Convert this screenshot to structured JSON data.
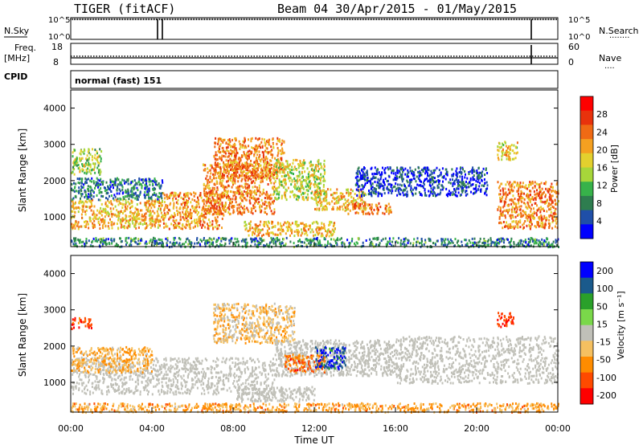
{
  "header": {
    "title": "TIGER (fitACF)",
    "beam_date": "Beam 04  30/Apr/2015 - 01/May/2015"
  },
  "nsky_panel": {
    "left_label": "N.Sky",
    "right_label": "N.Search",
    "left_ticks": [
      "10^5",
      "10^0"
    ],
    "right_ticks": [
      "10^5",
      "10^0"
    ],
    "dotted_legend": "········"
  },
  "freq_panel": {
    "left_label_line1": "Freq.",
    "left_label_line2": "[MHz]",
    "right_label": "Nave",
    "left_ticks": [
      "18",
      "8"
    ],
    "right_ticks": [
      "60",
      "0"
    ],
    "dotted_legend": "····"
  },
  "cpid": {
    "label": "CPID",
    "value": "normal (fast) 151"
  },
  "colors": {
    "frame": "#000000",
    "ground_scatter": "#c0c0b8"
  },
  "chart_data": [
    {
      "type": "heatmap",
      "name": "power",
      "ylabel": "Slant Range [km]",
      "xlabel": "",
      "xlim_hours": [
        0,
        24
      ],
      "ylim_km": [
        180,
        4500
      ],
      "y_ticks": [
        1000,
        2000,
        3000,
        4000
      ],
      "colorbar": {
        "label": "Power [dB]",
        "range": [
          0,
          32
        ],
        "ticks": [
          4,
          8,
          12,
          16,
          20,
          24,
          28
        ],
        "colors": [
          "#0000ff",
          "#1f4fa8",
          "#2e7d4f",
          "#37b24a",
          "#a7d63a",
          "#e3d02e",
          "#f4a020",
          "#f06a14",
          "#e8320c",
          "#ff0000"
        ]
      },
      "regions": [
        {
          "x": [
            0.0,
            4.5
          ],
          "y": [
            700,
            1500
          ],
          "level": 0.62
        },
        {
          "x": [
            0.0,
            4.5
          ],
          "y": [
            1500,
            2100
          ],
          "level": 0.22
        },
        {
          "x": [
            0.0,
            1.5
          ],
          "y": [
            2200,
            2900
          ],
          "level": 0.45
        },
        {
          "x": [
            4.5,
            7.5
          ],
          "y": [
            700,
            1700
          ],
          "level": 0.68
        },
        {
          "x": [
            6.5,
            10.0
          ],
          "y": [
            1100,
            2500
          ],
          "level": 0.7
        },
        {
          "x": [
            7.0,
            10.5
          ],
          "y": [
            2100,
            3200
          ],
          "level": 0.72
        },
        {
          "x": [
            10.0,
            12.5
          ],
          "y": [
            1500,
            2600
          ],
          "level": 0.5
        },
        {
          "x": [
            12.0,
            14.5
          ],
          "y": [
            1200,
            1800
          ],
          "level": 0.6
        },
        {
          "x": [
            13.5,
            15.8
          ],
          "y": [
            1100,
            1400
          ],
          "level": 0.72
        },
        {
          "x": [
            8.5,
            13.0
          ],
          "y": [
            500,
            900
          ],
          "level": 0.6
        },
        {
          "x": [
            14.0,
            20.5
          ],
          "y": [
            1600,
            2400
          ],
          "level": 0.12
        },
        {
          "x": [
            21.0,
            22.0
          ],
          "y": [
            2600,
            3100
          ],
          "level": 0.55
        },
        {
          "x": [
            21.0,
            24.0
          ],
          "y": [
            700,
            2000
          ],
          "level": 0.72
        },
        {
          "x": [
            0.0,
            24.0
          ],
          "y": [
            200,
            450
          ],
          "level": 0.25
        }
      ]
    },
    {
      "type": "heatmap",
      "name": "velocity",
      "ylabel": "Slant Range [km]",
      "xlabel": "Time UT",
      "xlim_hours": [
        0,
        24
      ],
      "ylim_km": [
        180,
        4500
      ],
      "y_ticks": [
        1000,
        2000,
        3000,
        4000
      ],
      "x_ticks": [
        "00:00",
        "04:00",
        "08:00",
        "12:00",
        "16:00",
        "20:00",
        "00:00"
      ],
      "x_tick_hours": [
        0,
        4,
        8,
        12,
        16,
        20,
        24
      ],
      "colorbar": {
        "label": "Velocity [m s⁻¹]",
        "range": [
          -250,
          250
        ],
        "ticks": [
          200,
          100,
          50,
          15,
          -15,
          -50,
          -100,
          -200
        ],
        "colors": [
          "#ff0000",
          "#ff4a00",
          "#ff8c00",
          "#f5c060",
          "#c0c0b8",
          "#7ad84a",
          "#2aa02a",
          "#1a5a8c",
          "#0000ff"
        ]
      },
      "regions": [
        {
          "x": [
            0.0,
            10.0
          ],
          "y": [
            700,
            1700
          ],
          "level": 0.0,
          "gs": true
        },
        {
          "x": [
            10.0,
            16.0
          ],
          "y": [
            1200,
            2200
          ],
          "level": 0.0,
          "gs": true
        },
        {
          "x": [
            16.0,
            24.0
          ],
          "y": [
            1000,
            2300
          ],
          "level": 0.0,
          "gs": true
        },
        {
          "x": [
            8.0,
            12.0
          ],
          "y": [
            500,
            900
          ],
          "level": 0.0,
          "gs": true
        },
        {
          "x": [
            0.0,
            4.0
          ],
          "y": [
            1300,
            2000
          ],
          "level": -0.3
        },
        {
          "x": [
            7.0,
            11.0
          ],
          "y": [
            2100,
            3200
          ],
          "level": -0.2
        },
        {
          "x": [
            10.5,
            12.5
          ],
          "y": [
            1300,
            1800
          ],
          "level": -0.55
        },
        {
          "x": [
            12.0,
            13.5
          ],
          "y": [
            1400,
            2000
          ],
          "level": 0.75
        },
        {
          "x": [
            21.0,
            21.8
          ],
          "y": [
            2550,
            2950
          ],
          "level": -0.8
        },
        {
          "x": [
            0.0,
            1.0
          ],
          "y": [
            2500,
            2800
          ],
          "level": -0.75
        },
        {
          "x": [
            0.0,
            24.0
          ],
          "y": [
            200,
            450
          ],
          "level": -0.35
        }
      ]
    }
  ]
}
